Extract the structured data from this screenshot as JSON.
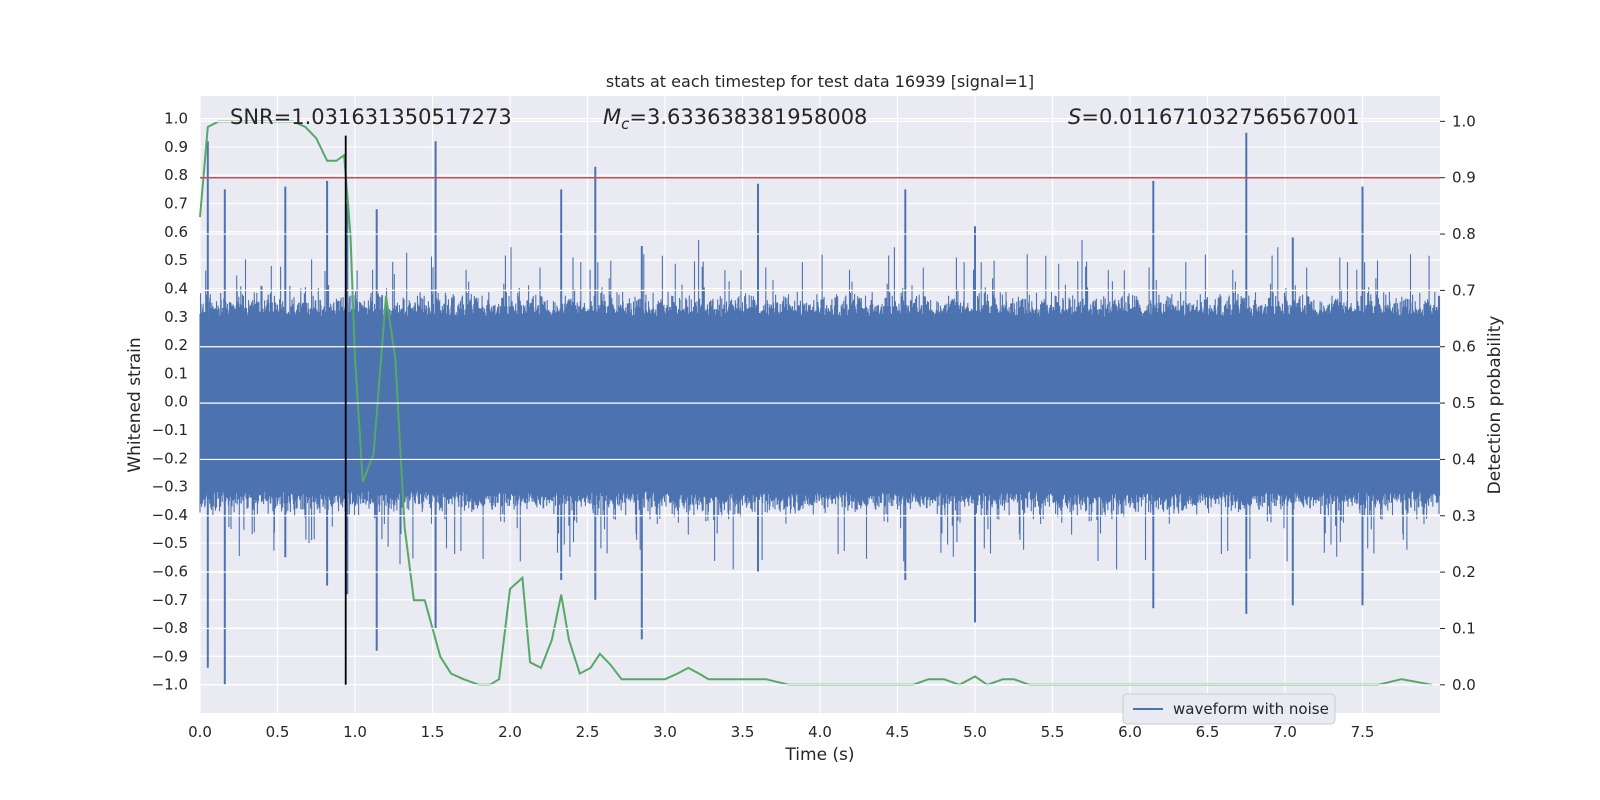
{
  "chart_data": {
    "type": "line",
    "title": "stats at each timestep for test data 16939 [signal=1]",
    "xlabel": "Time (s)",
    "ylabel": "Whitened strain",
    "y2label": "Detection probability",
    "xlim": [
      0.0,
      8.0
    ],
    "ylim": [
      -1.1,
      1.08
    ],
    "y2lim": [
      -0.05,
      1.045
    ],
    "xticks": [
      0.0,
      0.5,
      1.0,
      1.5,
      2.0,
      2.5,
      3.0,
      3.5,
      4.0,
      4.5,
      5.0,
      5.5,
      6.0,
      6.5,
      7.0,
      7.5
    ],
    "yticks": [
      1.0,
      0.9,
      0.8,
      0.7,
      0.6,
      0.5,
      0.4,
      0.3,
      0.2,
      0.1,
      0.0,
      -0.1,
      -0.2,
      -0.3,
      -0.4,
      -0.5,
      -0.6,
      -0.7,
      -0.8,
      -0.9,
      -1.0
    ],
    "y2ticks": [
      1.0,
      0.9,
      0.8,
      0.7,
      0.6,
      0.5,
      0.4,
      0.3,
      0.2,
      0.1,
      0.0
    ],
    "grid": true,
    "legend": {
      "placement": "lower-right",
      "entries": [
        "waveform with noise"
      ]
    },
    "annotations": {
      "snr_text": "SNR=1.031631350517273",
      "mc_prefix": "M",
      "mc_sub": "c",
      "mc_value": "=3.633638381958008",
      "s_prefix": "S",
      "s_value": "=0.011671032756567001"
    },
    "threshold_line": {
      "axis": "y2",
      "value": 0.9,
      "color": "#c44e52"
    },
    "marker_line": {
      "x": 0.94,
      "y_from": -1.0,
      "y_to": 0.94,
      "color": "#000000"
    },
    "colors": {
      "waveform": "#4c72b0",
      "probability": "#55a868",
      "background": "#eaeaf2",
      "grid": "#ffffff"
    },
    "series": [
      {
        "name": "waveform with noise",
        "axis": "y",
        "kind": "noise-envelope",
        "duration_s": 8.0,
        "typical_amplitude": 0.3,
        "spikes": [
          [
            0.05,
            0.92,
            -0.94
          ],
          [
            0.16,
            0.75,
            -1.0
          ],
          [
            0.55,
            0.76,
            -0.55
          ],
          [
            0.82,
            0.78,
            -0.65
          ],
          [
            0.95,
            0.7,
            -0.68
          ],
          [
            1.14,
            0.68,
            -0.88
          ],
          [
            1.52,
            0.92,
            -0.8
          ],
          [
            2.33,
            0.75,
            -0.63
          ],
          [
            2.55,
            0.83,
            -0.7
          ],
          [
            2.85,
            0.55,
            -0.84
          ],
          [
            3.6,
            0.77,
            -0.6
          ],
          [
            4.55,
            0.75,
            -0.63
          ],
          [
            5.0,
            0.62,
            -0.78
          ],
          [
            6.15,
            0.78,
            -0.73
          ],
          [
            6.75,
            0.95,
            -0.75
          ],
          [
            7.05,
            0.58,
            -0.72
          ],
          [
            7.5,
            0.76,
            -0.72
          ]
        ]
      },
      {
        "name": "",
        "axis": "y2",
        "x": [
          0.0,
          0.05,
          0.12,
          0.2,
          0.3,
          0.4,
          0.5,
          0.6,
          0.68,
          0.75,
          0.82,
          0.88,
          0.93,
          0.97,
          1.0,
          1.05,
          1.12,
          1.2,
          1.26,
          1.32,
          1.38,
          1.45,
          1.55,
          1.62,
          1.7,
          1.8,
          1.87,
          1.93,
          2.0,
          2.08,
          2.13,
          2.2,
          2.27,
          2.33,
          2.38,
          2.45,
          2.52,
          2.58,
          2.65,
          2.72,
          2.8,
          2.9,
          3.0,
          3.08,
          3.15,
          3.22,
          3.28,
          3.35,
          3.5,
          3.65,
          3.8,
          4.0,
          4.2,
          4.4,
          4.6,
          4.7,
          4.8,
          4.9,
          5.0,
          5.08,
          5.18,
          5.25,
          5.35,
          5.6,
          6.0,
          6.5,
          7.0,
          7.3,
          7.6,
          7.75,
          7.95
        ],
        "values": [
          0.83,
          0.99,
          1.0,
          1.0,
          1.0,
          1.0,
          1.0,
          1.0,
          0.99,
          0.97,
          0.93,
          0.93,
          0.94,
          0.8,
          0.58,
          0.36,
          0.41,
          0.69,
          0.58,
          0.28,
          0.15,
          0.15,
          0.05,
          0.02,
          0.01,
          0.0,
          0.0,
          0.01,
          0.17,
          0.19,
          0.04,
          0.03,
          0.08,
          0.16,
          0.08,
          0.02,
          0.03,
          0.055,
          0.035,
          0.01,
          0.01,
          0.01,
          0.01,
          0.02,
          0.03,
          0.02,
          0.01,
          0.01,
          0.01,
          0.01,
          0.0,
          0.0,
          0.0,
          0.0,
          0.0,
          0.01,
          0.01,
          0.0,
          0.015,
          0.0,
          0.01,
          0.01,
          0.0,
          0.0,
          0.0,
          0.0,
          0.0,
          0.0,
          0.0,
          0.01,
          0.0
        ]
      }
    ]
  }
}
